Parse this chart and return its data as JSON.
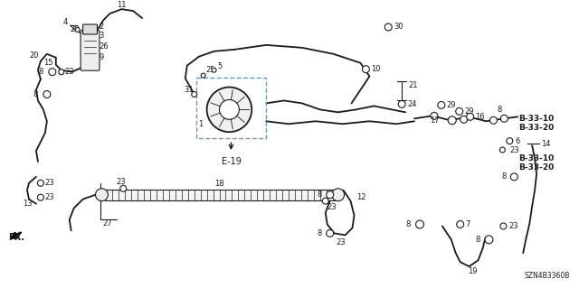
{
  "bg_color": "#ffffff",
  "text_color": "#1a1a1a",
  "line_color": "#1a1a1a",
  "bottom_code": "SZN4B3360B",
  "fr_label": "FR.",
  "dashed_color": "#6699bb",
  "e19_label": "E-19",
  "b3310": "B-33-10",
  "b3320": "B-33-20"
}
